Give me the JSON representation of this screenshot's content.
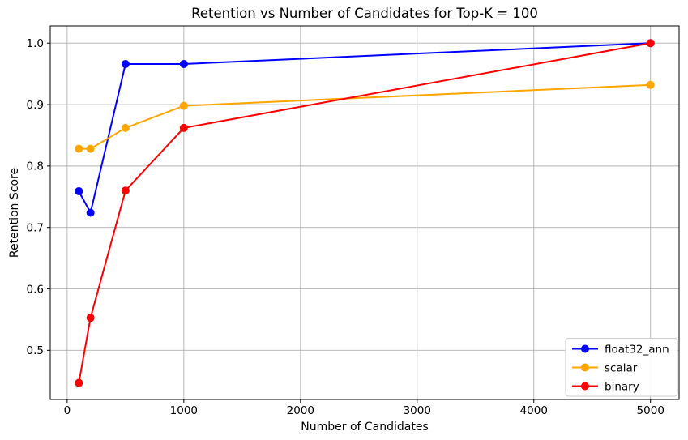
{
  "chart_data": {
    "type": "line",
    "title": "Retention vs Number of Candidates for Top-K = 100",
    "xlabel": "Number of Candidates",
    "ylabel": "Retention Score",
    "x": [
      100,
      200,
      500,
      1000,
      5000
    ],
    "series": [
      {
        "name": "float32_ann",
        "color": "#0000ff",
        "values": [
          0.759,
          0.724,
          0.966,
          0.966,
          1.0
        ]
      },
      {
        "name": "scalar",
        "color": "#ffa500",
        "values": [
          0.828,
          0.828,
          0.862,
          0.898,
          0.932
        ]
      },
      {
        "name": "binary",
        "color": "#ff0000",
        "values": [
          0.447,
          0.553,
          0.76,
          0.862,
          1.0
        ]
      }
    ],
    "xticks": {
      "values": [
        0,
        1000,
        2000,
        3000,
        4000,
        5000
      ],
      "labels": [
        "0",
        "1000",
        "2000",
        "3000",
        "4000",
        "5000"
      ]
    },
    "yticks": {
      "values": [
        0.5,
        0.6,
        0.7,
        0.8,
        0.9,
        1.0
      ],
      "labels": [
        "0.5",
        "0.6",
        "0.7",
        "0.8",
        "0.9",
        "1.0"
      ]
    },
    "xlim": [
      -145,
      5245
    ],
    "ylim": [
      0.42,
      1.028
    ],
    "grid": true,
    "grid_color": "#b0b0b0",
    "spine_color": "#000000",
    "background_color": "#ffffff",
    "legend": {
      "position": "lower right",
      "entries": [
        "float32_ann",
        "scalar",
        "binary"
      ],
      "border_color": "#cccccc",
      "background_color": "#ffffff"
    }
  }
}
